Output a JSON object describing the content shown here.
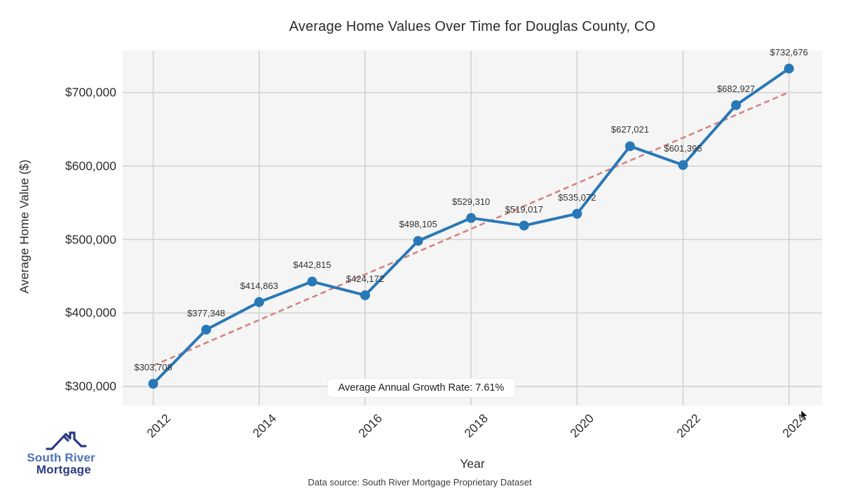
{
  "chart_data": {
    "type": "line",
    "title": "Average Home Values Over Time for Douglas County, CO",
    "xlabel": "Year",
    "ylabel": "Average Home Value ($)",
    "x": [
      2012,
      2013,
      2014,
      2015,
      2016,
      2017,
      2018,
      2019,
      2020,
      2021,
      2022,
      2023,
      2024
    ],
    "series": [
      {
        "name": "Average Home Value",
        "values": [
          303708,
          377348,
          414863,
          442815,
          424172,
          498105,
          529310,
          519017,
          535072,
          627021,
          601395,
          682927,
          732676
        ]
      }
    ],
    "point_labels": [
      "$303,708",
      "$377,348",
      "$414,863",
      "$442,815",
      "$424,172",
      "$498,105",
      "$529,310",
      "$519,017",
      "$535,072",
      "$627,021",
      "$601,395",
      "$682,927",
      "$732,676"
    ],
    "y_ticks": [
      {
        "value": 300000,
        "label": "$300,000"
      },
      {
        "value": 400000,
        "label": "$400,000"
      },
      {
        "value": 500000,
        "label": "$500,000"
      },
      {
        "value": 600000,
        "label": "$600,000"
      },
      {
        "value": 700000,
        "label": "$700,000"
      }
    ],
    "x_ticks": [
      2012,
      2014,
      2016,
      2018,
      2020,
      2022,
      2024
    ],
    "ylim": [
      274000,
      757000
    ],
    "xlim": [
      2011.4,
      2024.6
    ],
    "grid": true,
    "trendline": {
      "type": "linear-regression",
      "style": "dashed"
    },
    "annotation": "Average Annual Growth Rate: 7.61%",
    "colors": {
      "line": "#2878b8",
      "marker": "#2878b8",
      "trend": "#d78282",
      "plot_background": "#f5f5f5",
      "gridline": "#d2d2d2"
    }
  },
  "footer": {
    "caption": "Data source: South River Mortgage Proprietary Dataset"
  },
  "logo": {
    "line1": "South River",
    "line2": "Mortgage",
    "color1": "#4a72bc",
    "color2": "#2d3a85"
  }
}
